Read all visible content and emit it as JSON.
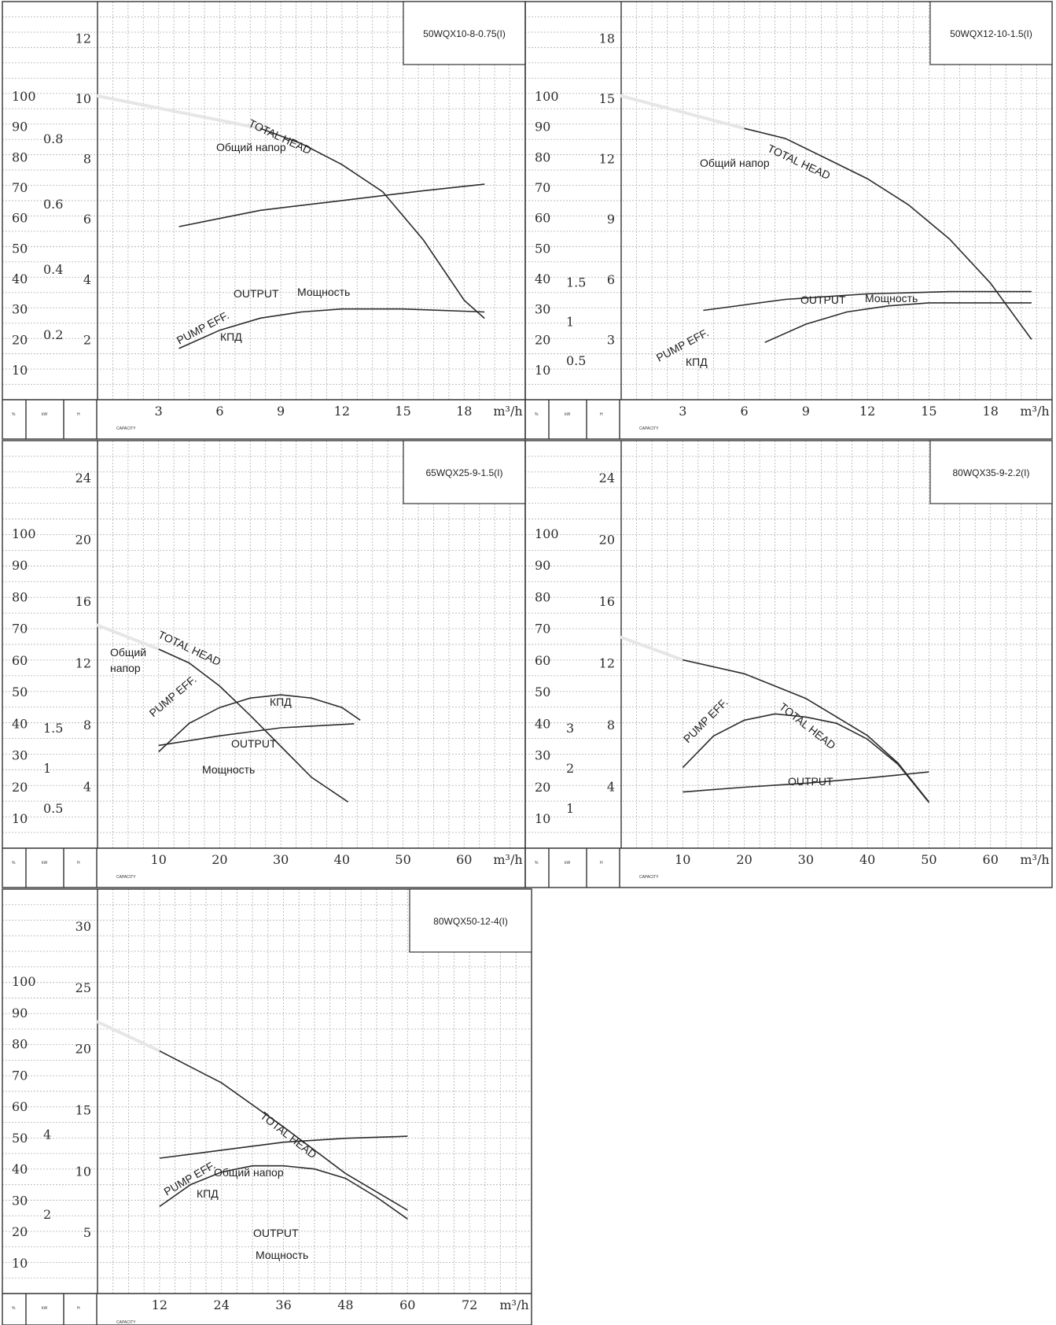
{
  "chart_data": [
    {
      "type": "line",
      "title": "50WQX10-8-0.75(I)",
      "x_unit": "m³/h",
      "x_ticks": [
        3,
        6,
        9,
        12,
        15,
        18
      ],
      "xlim": [
        0,
        21
      ],
      "head_ticks": [
        2,
        4,
        6,
        8,
        10,
        12
      ],
      "head_lim": [
        0,
        13
      ],
      "power_ticks": [
        "0.2",
        "0.4",
        "0.6",
        "0.8"
      ],
      "power_lim": [
        0,
        1.2
      ],
      "eff_ticks": [
        10,
        20,
        30,
        40,
        50,
        60,
        70,
        80,
        90,
        100
      ],
      "axis_header": {
        "pct": "%",
        "kw": "kW",
        "h": "H"
      },
      "capacity_label": "CAPACITY",
      "labels": {
        "total_head_en": "TOTAL HEAD",
        "total_head_ru": "Общий напор",
        "output_en": "OUTPUT",
        "output_ru": "Мощность",
        "eff_en": "PUMP EFF.",
        "eff_ru": "КПД"
      },
      "series": [
        {
          "name": "TOTAL HEAD",
          "axis": "head",
          "x": [
            8,
            10,
            12,
            14,
            16,
            18,
            19
          ],
          "y": [
            9.0,
            8.5,
            7.8,
            6.9,
            5.3,
            3.3,
            2.7
          ]
        },
        {
          "name": "OUTPUT",
          "axis": "power",
          "x": [
            4,
            8,
            12,
            16,
            19
          ],
          "y": [
            0.53,
            0.58,
            0.61,
            0.64,
            0.66
          ]
        },
        {
          "name": "PUMP EFF.",
          "axis": "eff",
          "x": [
            4,
            6,
            8,
            10,
            12,
            15,
            19
          ],
          "y": [
            17,
            23,
            27,
            29,
            30,
            30,
            29
          ]
        }
      ]
    },
    {
      "type": "line",
      "title": "50WQX12-10-1.5(I)",
      "x_unit": "m³/h",
      "x_ticks": [
        3,
        6,
        9,
        12,
        15,
        18
      ],
      "xlim": [
        0,
        21
      ],
      "head_ticks": [
        3,
        6,
        9,
        12,
        15,
        18
      ],
      "head_lim": [
        0,
        19.5
      ],
      "power_ticks": [
        "0.5",
        "1",
        "1.5"
      ],
      "power_lim": [
        0,
        5
      ],
      "eff_ticks": [
        10,
        20,
        30,
        40,
        50,
        60,
        70,
        80,
        90,
        100
      ],
      "axis_header": {
        "pct": "%",
        "kw": "kW",
        "h": "H"
      },
      "capacity_label": "CAPACITY",
      "labels": {
        "total_head_en": "TOTAL HEAD",
        "total_head_ru": "Общий напор",
        "output_en": "OUTPUT",
        "output_ru": "Мощность",
        "eff_en": "PUMP EFF.",
        "eff_ru": "КПД"
      },
      "series": [
        {
          "name": "TOTAL HEAD",
          "axis": "head",
          "x": [
            6,
            8,
            10,
            12,
            14,
            16,
            18,
            20
          ],
          "y": [
            13.5,
            13.0,
            12.0,
            11.0,
            9.7,
            8.0,
            5.8,
            3.0
          ]
        },
        {
          "name": "OUTPUT",
          "axis": "power",
          "x": [
            4,
            6,
            8,
            12,
            16,
            20
          ],
          "y": [
            1.14,
            1.21,
            1.28,
            1.35,
            1.38,
            1.38
          ]
        },
        {
          "name": "PUMP EFF.",
          "axis": "eff",
          "x": [
            7,
            9,
            11,
            13,
            15,
            17,
            20
          ],
          "y": [
            19,
            25,
            29,
            31,
            32,
            32,
            32
          ]
        }
      ]
    },
    {
      "type": "line",
      "title": "65WQX25-9-1.5(I)",
      "x_unit": "m³/h",
      "x_ticks": [
        10,
        20,
        30,
        40,
        50,
        60
      ],
      "xlim": [
        0,
        70
      ],
      "head_ticks": [
        4,
        8,
        12,
        16,
        20,
        24
      ],
      "head_lim": [
        0,
        26
      ],
      "power_ticks": [
        "0.5",
        "1",
        "1.5"
      ],
      "power_lim": [
        0,
        5
      ],
      "eff_ticks": [
        10,
        20,
        30,
        40,
        50,
        60,
        70,
        80,
        90,
        100
      ],
      "axis_header": {
        "pct": "%",
        "kw": "kW",
        "h": "H"
      },
      "capacity_label": "CAPACITY",
      "labels": {
        "total_head_en": "TOTAL HEAD",
        "total_head_ru": "Общий\nнапор",
        "output_en": "OUTPUT",
        "output_ru": "Мощность",
        "eff_en": "PUMP EFF.",
        "eff_ru": "КПД"
      },
      "series": [
        {
          "name": "TOTAL HEAD",
          "axis": "head",
          "x": [
            10,
            15,
            20,
            25,
            30,
            35,
            41
          ],
          "y": [
            12.9,
            12.0,
            10.5,
            8.6,
            6.6,
            4.6,
            3.0
          ]
        },
        {
          "name": "OUTPUT",
          "axis": "power",
          "x": [
            10,
            20,
            30,
            42
          ],
          "y": [
            1.28,
            1.4,
            1.5,
            1.55
          ]
        },
        {
          "name": "PUMP EFF.",
          "axis": "eff",
          "x": [
            10,
            15,
            20,
            25,
            30,
            35,
            40,
            43
          ],
          "y": [
            31,
            40,
            45,
            48,
            49,
            48,
            45,
            41
          ]
        }
      ]
    },
    {
      "type": "line",
      "title": "80WQX35-9-2.2(I)",
      "x_unit": "m³/h",
      "x_ticks": [
        10,
        20,
        30,
        40,
        50,
        60
      ],
      "xlim": [
        0,
        70
      ],
      "head_ticks": [
        4,
        8,
        12,
        16,
        20,
        24
      ],
      "head_lim": [
        0,
        26
      ],
      "power_ticks": [
        "1",
        "2",
        "3"
      ],
      "power_lim": [
        0,
        10
      ],
      "eff_ticks": [
        10,
        20,
        30,
        40,
        50,
        60,
        70,
        80,
        90,
        100
      ],
      "axis_header": {
        "pct": "%",
        "kw": "kW",
        "h": "H"
      },
      "capacity_label": "CAPACITY",
      "labels": {
        "total_head_en": "TOTAL HEAD",
        "output_en": "OUTPUT",
        "eff_en": "PUMP EFF."
      },
      "series": [
        {
          "name": "TOTAL HEAD",
          "axis": "head",
          "x": [
            10,
            20,
            30,
            40,
            45,
            50
          ],
          "y": [
            12.2,
            11.3,
            9.7,
            7.3,
            5.5,
            3.0
          ]
        },
        {
          "name": "OUTPUT",
          "axis": "power",
          "x": [
            10,
            20,
            30,
            40,
            50
          ],
          "y": [
            1.4,
            1.52,
            1.62,
            1.75,
            1.9
          ]
        },
        {
          "name": "PUMP EFF.",
          "axis": "eff",
          "x": [
            10,
            15,
            20,
            25,
            30,
            35,
            40,
            45,
            50
          ],
          "y": [
            26,
            36,
            41,
            43,
            42,
            40,
            35,
            27,
            15
          ]
        }
      ]
    },
    {
      "type": "line",
      "title": "80WQX50-12-4(I)",
      "x_unit": "m³/h",
      "x_ticks": [
        12,
        24,
        36,
        48,
        60,
        72
      ],
      "xlim": [
        0,
        84
      ],
      "head_ticks": [
        5,
        10,
        15,
        20,
        25,
        30
      ],
      "head_lim": [
        0,
        32.5
      ],
      "power_ticks": [
        "2",
        "4"
      ],
      "power_lim": [
        0,
        10
      ],
      "eff_ticks": [
        10,
        20,
        30,
        40,
        50,
        60,
        70,
        80,
        90,
        100
      ],
      "axis_header": {
        "pct": "%",
        "kw": "kW",
        "h": "H"
      },
      "capacity_label": "CAPACITY",
      "labels": {
        "total_head_en": "TOTAL HEAD",
        "total_head_ru": "Общий напор",
        "output_en": "OUTPUT",
        "output_ru": "Мощность",
        "eff_en": "PUMP EFF.",
        "eff_ru": "КПД"
      },
      "series": [
        {
          "name": "TOTAL HEAD",
          "axis": "head",
          "x": [
            12,
            24,
            36,
            48,
            60
          ],
          "y": [
            19.8,
            17.2,
            13.6,
            9.8,
            6.8
          ]
        },
        {
          "name": "OUTPUT",
          "axis": "power",
          "x": [
            12,
            24,
            36,
            48,
            60
          ],
          "y": [
            3.4,
            3.6,
            3.8,
            3.9,
            3.95
          ]
        },
        {
          "name": "PUMP EFF.",
          "axis": "eff",
          "x": [
            12,
            18,
            24,
            30,
            36,
            42,
            48,
            54,
            60
          ],
          "y": [
            28,
            35,
            39,
            41,
            41,
            40,
            37,
            31,
            24
          ]
        }
      ]
    }
  ]
}
